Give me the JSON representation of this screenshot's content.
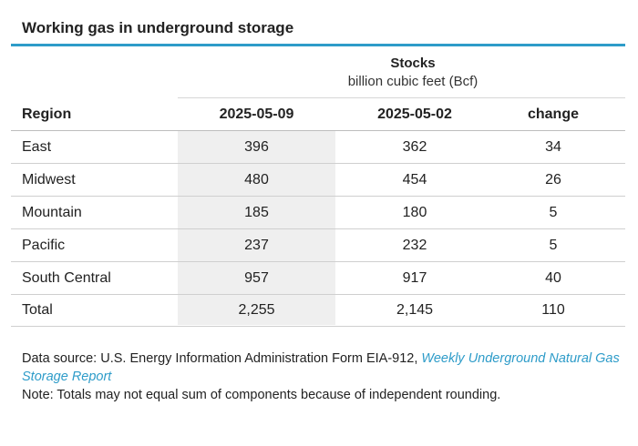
{
  "title": "Working gas in underground storage",
  "group_header": {
    "title": "Stocks",
    "subtitle": "billion cubic feet (Bcf)"
  },
  "columns": [
    "Region",
    "2025-05-09",
    "2025-05-02",
    "change"
  ],
  "rows": [
    [
      "East",
      "396",
      "362",
      "34"
    ],
    [
      "Midwest",
      "480",
      "454",
      "26"
    ],
    [
      "Mountain",
      "185",
      "180",
      "5"
    ],
    [
      "Pacific",
      "237",
      "232",
      "5"
    ],
    [
      "South Central",
      "957",
      "917",
      "40"
    ],
    [
      "Total",
      "2,255",
      "2,145",
      "110"
    ]
  ],
  "footer": {
    "source_prefix": "Data source: U.S. Energy Information Administration Form EIA-912, ",
    "source_link": "Weekly Underground Natural Gas Storage Report",
    "note": "Note: Totals may not equal sum of components because of independent rounding."
  },
  "colors": {
    "accent": "#2e9cc9",
    "highlight_column": "#efefef"
  }
}
